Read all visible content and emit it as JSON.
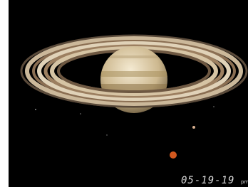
{
  "overlay": {
    "date": "05-19-19",
    "suffix": "pm"
  }
}
